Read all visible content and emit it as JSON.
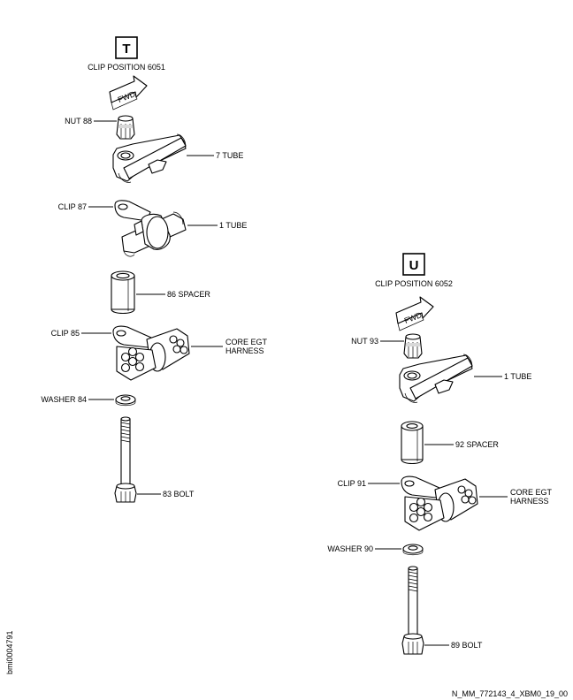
{
  "views": [
    {
      "letter": "T",
      "title": "CLIP POSITION 6051",
      "fwd": "FWD",
      "labels": {
        "nut": "NUT 88",
        "tube_top": "7 TUBE",
        "clip": "CLIP 87",
        "tube_mid": "1 TUBE",
        "spacer": "86 SPACER",
        "clip2": "CLIP 85",
        "harness_1": "CORE EGT",
        "harness_2": "HARNESS",
        "washer": "WASHER 84",
        "bolt": "83 BOLT"
      }
    },
    {
      "letter": "U",
      "title": "CLIP POSITION 6052",
      "fwd": "FWD",
      "labels": {
        "nut": "NUT 93",
        "tube": "1 TUBE",
        "spacer": "92 SPACER",
        "clip": "CLIP 91",
        "harness_1": "CORE EGT",
        "harness_2": "HARNESS",
        "washer": "WASHER 90",
        "bolt": "89 BOLT"
      }
    }
  ],
  "side_code": "bmi0004791",
  "footer_code": "N_MM_772143_4_XBM0_19_00"
}
